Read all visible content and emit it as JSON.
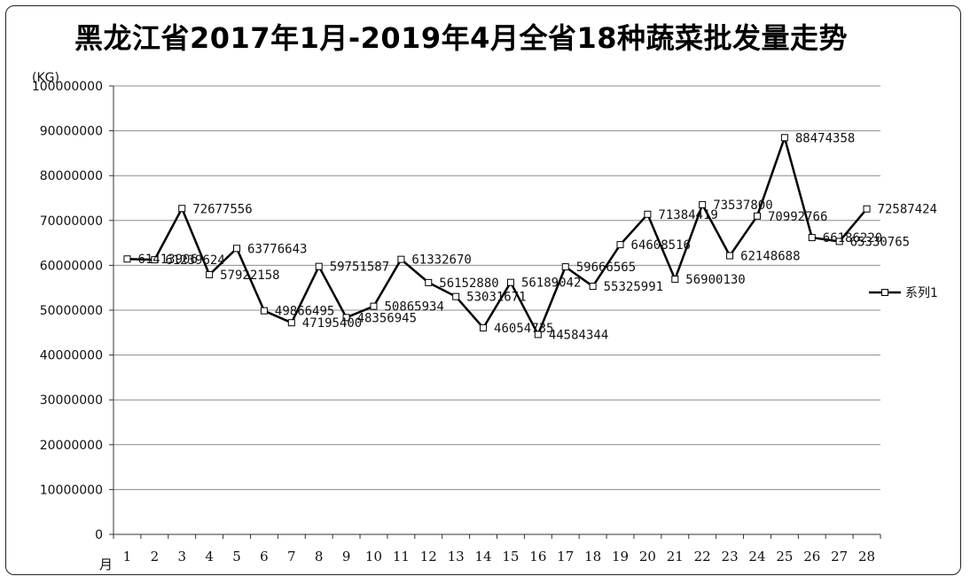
{
  "chart_data": {
    "type": "line",
    "title": "黑龙江省2017年1月-2019年4月全省18种蔬菜批发量走势",
    "ylabel": "(KG)",
    "xlabel": "月",
    "ylim": [
      0,
      100000000
    ],
    "yticks": [
      "0",
      "10000000",
      "20000000",
      "30000000",
      "40000000",
      "50000000",
      "60000000",
      "70000000",
      "80000000",
      "90000000",
      "100000000"
    ],
    "categories": [
      "1",
      "2",
      "3",
      "4",
      "5",
      "6",
      "7",
      "8",
      "9",
      "10",
      "11",
      "12",
      "13",
      "14",
      "15",
      "16",
      "17",
      "18",
      "19",
      "20",
      "21",
      "22",
      "23",
      "24",
      "25",
      "26",
      "27",
      "28"
    ],
    "series": [
      {
        "name": "系列1",
        "values": [
          61413906,
          61239624,
          72677556,
          57922158,
          63776643,
          49866495,
          47195400,
          59751587,
          48356945,
          50865934,
          61332670,
          56152880,
          53031671,
          46054735,
          56189042,
          44584344,
          59666565,
          55325991,
          64608516,
          71384419,
          56900130,
          73537800,
          62148688,
          70992766,
          88474358,
          66186220,
          65330765,
          72587424
        ],
        "labels": [
          "61413906",
          "61239624",
          "72677556",
          "57922158",
          "63776643",
          "49866495",
          "47195400",
          "59751587",
          "48356945",
          "50865934",
          "61332670",
          "56152880",
          "53031671",
          "46054735",
          "56189042",
          "44584344",
          "59666565",
          "55325991",
          "64608516",
          "71384419",
          "56900130",
          "73537800",
          "62148688",
          "70992766",
          "88474358",
          "66186220",
          "65330765",
          "72587424"
        ]
      }
    ],
    "grid": true,
    "legend": "right",
    "line_color": "#000000",
    "marker": "square"
  }
}
